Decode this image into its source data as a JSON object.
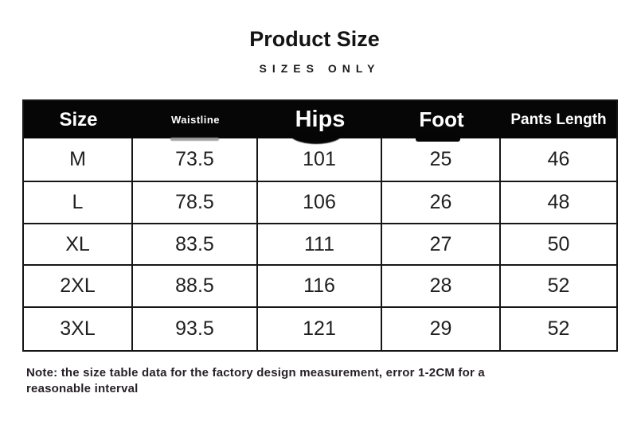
{
  "header": {
    "title": "Product Size",
    "subtitle": "SIZES ONLY"
  },
  "table": {
    "headers": [
      "Size",
      "Waistline",
      "Hips",
      "Foot",
      "Pants Length"
    ],
    "rows": [
      [
        "M",
        "73.5",
        "101",
        "25",
        "46"
      ],
      [
        "L",
        "78.5",
        "106",
        "26",
        "48"
      ],
      [
        "XL",
        "83.5",
        "111",
        "27",
        "50"
      ],
      [
        "2XL",
        "88.5",
        "116",
        "28",
        "52"
      ],
      [
        "3XL",
        "93.5",
        "121",
        "29",
        "52"
      ]
    ]
  },
  "note": {
    "line1": "Note: the size table data for the factory design measurement, error 1-2CM for a",
    "line2": "reasonable interval"
  },
  "colors": {
    "header_bg": "#060606",
    "header_text": "#ffffff",
    "border": "#161616",
    "body_text": "#1f1f1f",
    "note_text": "#272127",
    "smudge_grey": "#a3a3a3"
  }
}
